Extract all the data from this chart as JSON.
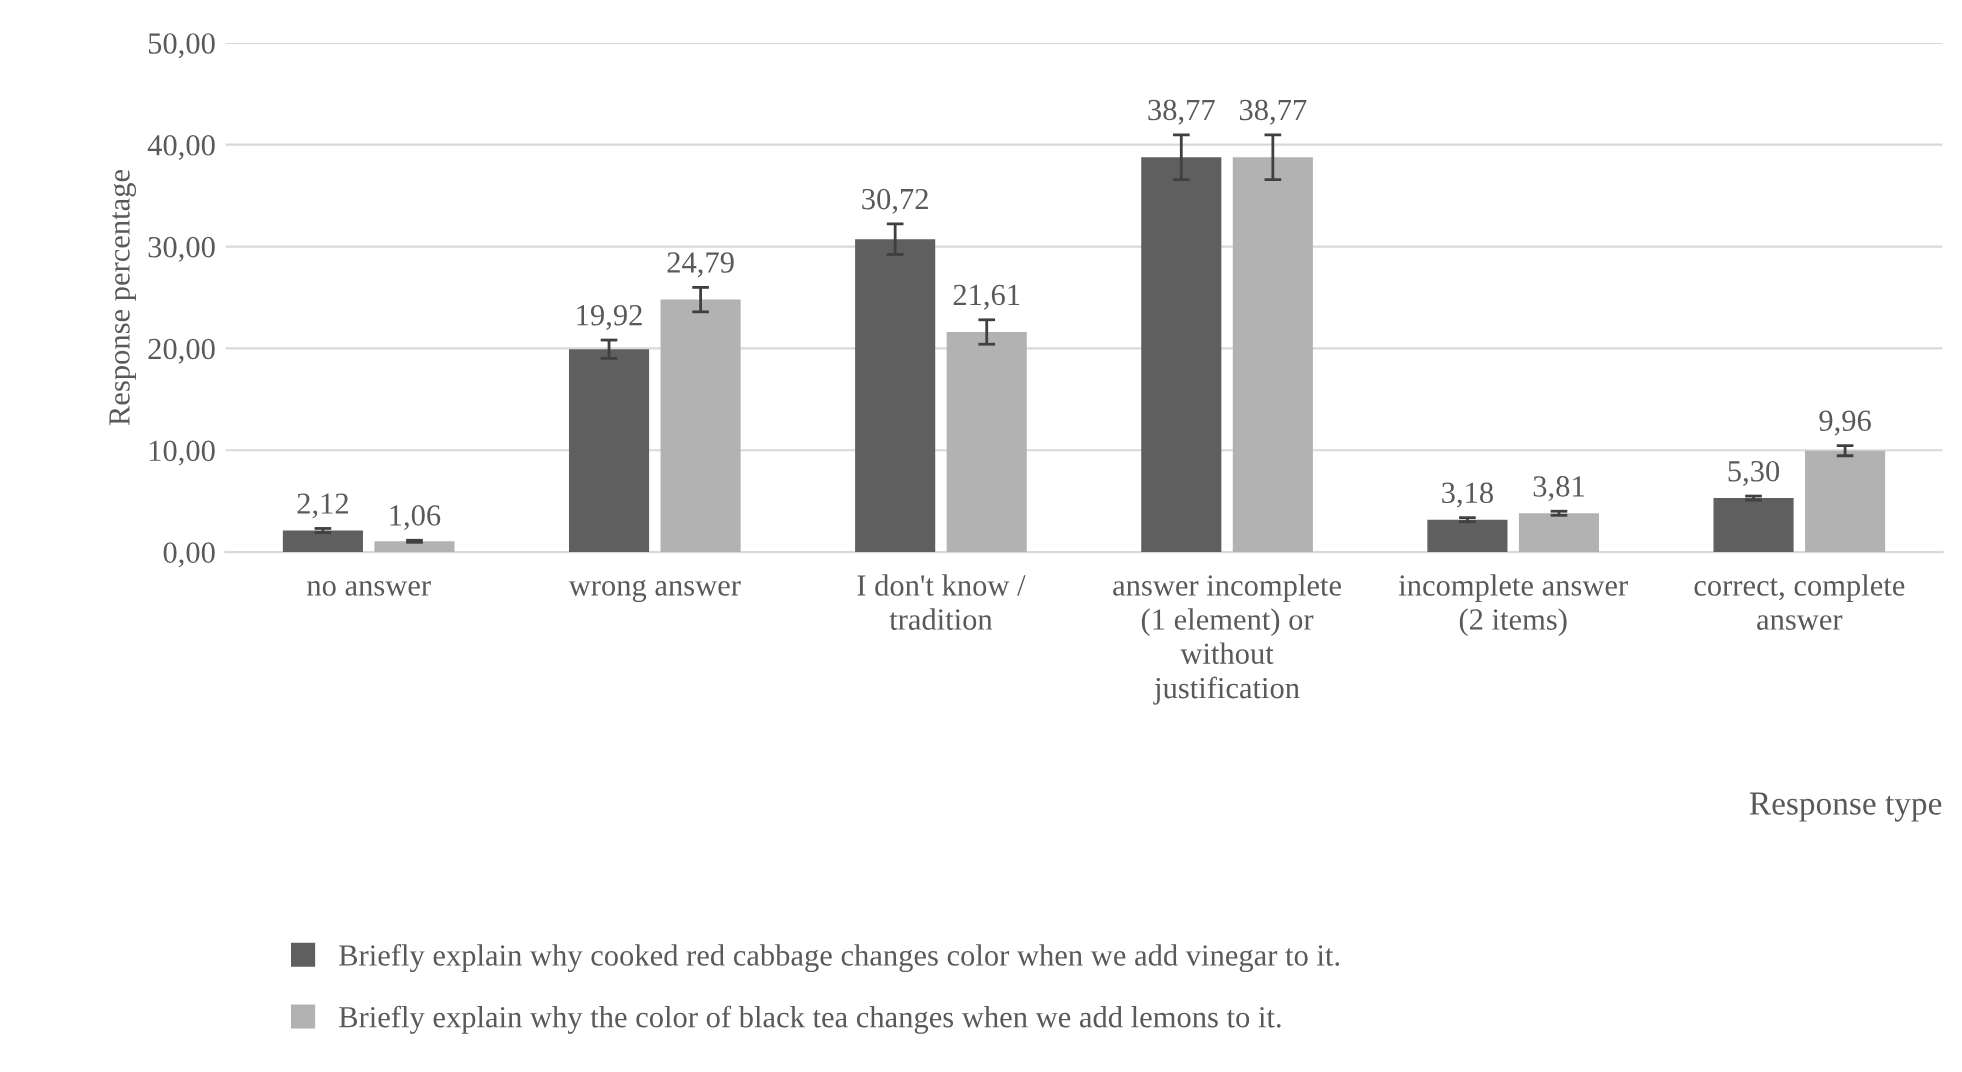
{
  "chart_data": {
    "type": "bar",
    "categories": [
      "no answer",
      "wrong answer",
      "I don't know / tradition",
      "answer incomplete (1 element) or without justification",
      "incomplete answer (2 items)",
      "correct, complete answer"
    ],
    "series": [
      {
        "name": "Briefly explain why cooked red cabbage changes color when we add vinegar to it.",
        "color": "#5f5f5f",
        "values": [
          2.12,
          19.92,
          30.72,
          38.77,
          3.18,
          5.3
        ],
        "errors": [
          0.2,
          0.9,
          1.5,
          2.2,
          0.2,
          0.2
        ],
        "value_labels": [
          "2,12",
          "19,92",
          "30,72",
          "38,77",
          "3,18",
          "5,30"
        ]
      },
      {
        "name": "Briefly explain why the color of black tea changes when we add lemons to it.",
        "color": "#b2b2b2",
        "values": [
          1.06,
          24.79,
          21.61,
          38.77,
          3.81,
          9.96
        ],
        "errors": [
          0.1,
          1.2,
          1.2,
          2.2,
          0.2,
          0.5
        ],
        "value_labels": [
          "1,06",
          "24,79",
          "21,61",
          "38,77",
          "3,81",
          "9,96"
        ]
      }
    ],
    "ylabel": "Response percentage",
    "xlabel": "Response type",
    "ylim": [
      0,
      50
    ],
    "yticks": [
      {
        "value": 0,
        "label": "0,00"
      },
      {
        "value": 10,
        "label": "10,00"
      },
      {
        "value": 20,
        "label": "20,00"
      },
      {
        "value": 30,
        "label": "30,00"
      },
      {
        "value": 40,
        "label": "40,00"
      },
      {
        "value": 50,
        "label": "50,00"
      }
    ],
    "grid": "y",
    "legend": "bottom"
  }
}
